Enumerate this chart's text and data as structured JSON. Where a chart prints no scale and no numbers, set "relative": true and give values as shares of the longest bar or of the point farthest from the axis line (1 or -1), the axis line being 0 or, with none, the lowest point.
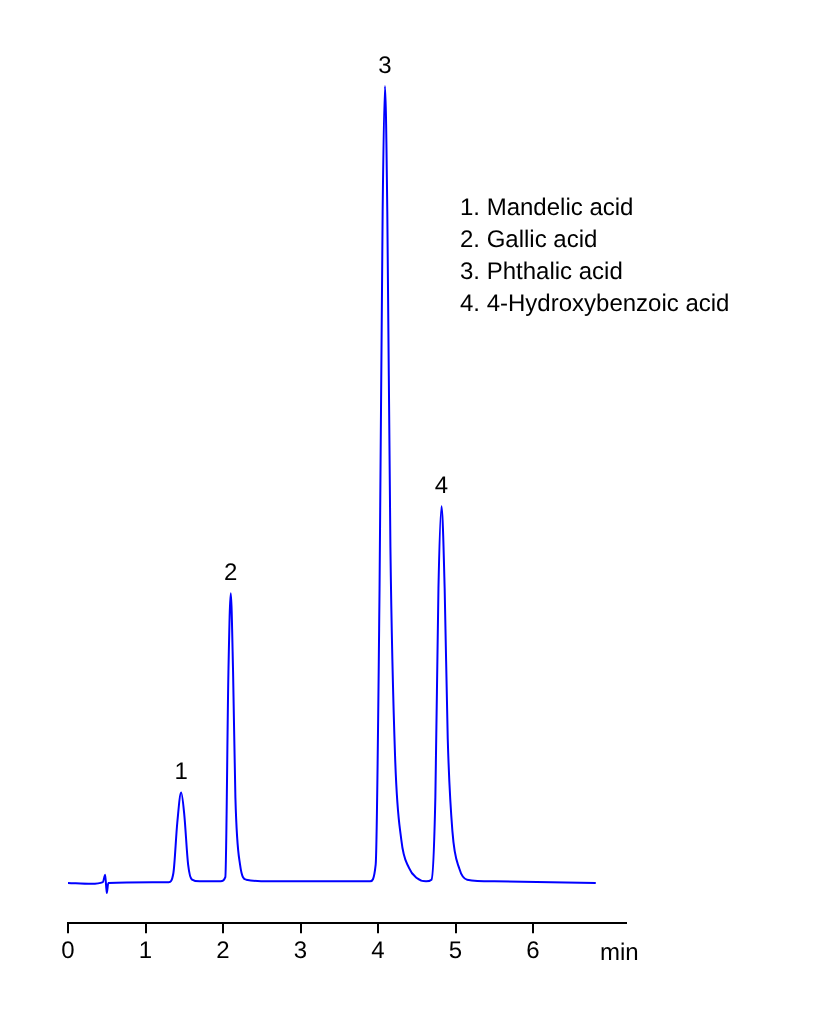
{
  "chart_data": {
    "type": "line",
    "relative": true,
    "xlabel": "min",
    "xlim": [
      0,
      7.2
    ],
    "xticks": [
      0,
      1,
      2,
      3,
      4,
      5,
      6
    ],
    "grid": false,
    "legend": false,
    "marker": "none",
    "line_style": "solid",
    "x": [
      0,
      0.3,
      0.45,
      0.48,
      0.5,
      0.52,
      1.3,
      1.36,
      1.41,
      1.46,
      1.5,
      1.55,
      1.6,
      1.7,
      1.97,
      2.03,
      2.07,
      2.1,
      2.13,
      2.16,
      2.22,
      2.3,
      2.6,
      3.9,
      3.97,
      4.02,
      4.06,
      4.09,
      4.12,
      4.16,
      4.22,
      4.3,
      4.4,
      4.5,
      4.62,
      4.69,
      4.74,
      4.78,
      4.82,
      4.86,
      4.9,
      4.96,
      5.05,
      5.15,
      5.5,
      6.81
    ],
    "series": [
      {
        "color": "#0000ff",
        "values": [
          0.048,
          0.047,
          0.049,
          0.058,
          0.036,
          0.048,
          0.049,
          0.06,
          0.12,
          0.156,
          0.13,
          0.07,
          0.052,
          0.05,
          0.05,
          0.055,
          0.3,
          0.394,
          0.3,
          0.15,
          0.07,
          0.052,
          0.05,
          0.05,
          0.07,
          0.4,
          0.85,
          1,
          0.85,
          0.45,
          0.2,
          0.1,
          0.066,
          0.054,
          0.05,
          0.052,
          0.15,
          0.4,
          0.498,
          0.4,
          0.22,
          0.11,
          0.065,
          0.052,
          0.05,
          0.048
        ]
      }
    ],
    "annotations": [
      {
        "text": "1",
        "x": 1.46,
        "y": 0.156
      },
      {
        "text": "2",
        "x": 2.1,
        "y": 0.394
      },
      {
        "text": "3",
        "x": 4.09,
        "y": 1
      },
      {
        "text": "4",
        "x": 4.82,
        "y": 0.498
      },
      "1. Mandelic acid",
      "2. Gallic acid",
      "3. Phthalic acid",
      "4. 4-Hydroxybenzoic acid"
    ]
  }
}
